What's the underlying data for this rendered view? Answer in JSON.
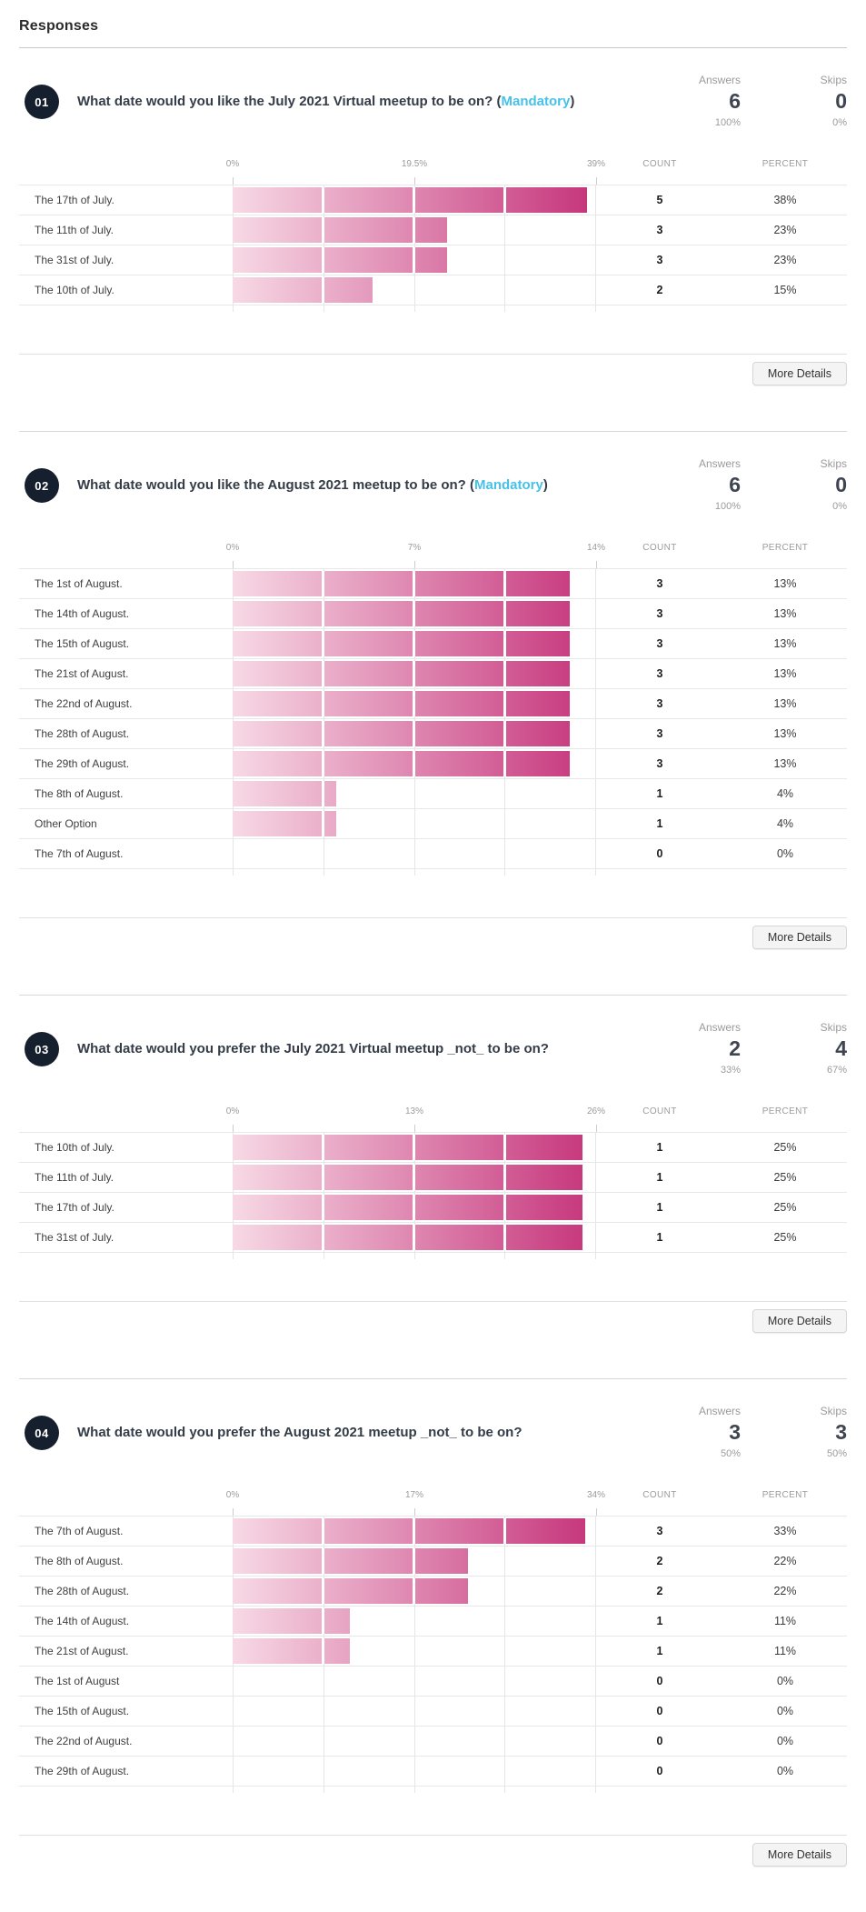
{
  "page": {
    "title": "Responses"
  },
  "stats_labels": {
    "answers": "Answers",
    "skips": "Skips"
  },
  "table_headers": {
    "count": "COUNT",
    "percent": "PERCENT"
  },
  "more_details_label": "More Details",
  "mandatory_tag": {
    "prefix": "(",
    "label": "Mandatory",
    "suffix": ")"
  },
  "colors": {
    "bar_gradient_start": "#F7D9E5",
    "bar_gradient_end": "#C5337A",
    "badge_background": "#161F2D",
    "mandatory_blue": "#47C1E8",
    "gridline": "#E5E5E5"
  },
  "questions": [
    {
      "number": "01",
      "title": "What date would you like the July 2021 Virtual meetup to be on?",
      "mandatory": true,
      "answers": {
        "count": "6",
        "percent": "100%"
      },
      "skips": {
        "count": "0",
        "percent": "0%"
      },
      "axis": {
        "ticks": [
          "0%",
          "19.5%",
          "39%"
        ],
        "max": 39
      },
      "rows": [
        {
          "label": "The 17th of July.",
          "count": "5",
          "percent": "38%",
          "pct": 38
        },
        {
          "label": "The 11th of July.",
          "count": "3",
          "percent": "23%",
          "pct": 23
        },
        {
          "label": "The 31st of July.",
          "count": "3",
          "percent": "23%",
          "pct": 23
        },
        {
          "label": "The 10th of July.",
          "count": "2",
          "percent": "15%",
          "pct": 15
        }
      ]
    },
    {
      "number": "02",
      "title": "What date would you like the August 2021 meetup to be on?",
      "mandatory": true,
      "answers": {
        "count": "6",
        "percent": "100%"
      },
      "skips": {
        "count": "0",
        "percent": "0%"
      },
      "axis": {
        "ticks": [
          "0%",
          "7%",
          "14%"
        ],
        "max": 14
      },
      "rows": [
        {
          "label": "The 1st of August.",
          "count": "3",
          "percent": "13%",
          "pct": 13
        },
        {
          "label": "The 14th of August.",
          "count": "3",
          "percent": "13%",
          "pct": 13
        },
        {
          "label": "The 15th of August.",
          "count": "3",
          "percent": "13%",
          "pct": 13
        },
        {
          "label": "The 21st of August.",
          "count": "3",
          "percent": "13%",
          "pct": 13
        },
        {
          "label": "The 22nd of August.",
          "count": "3",
          "percent": "13%",
          "pct": 13
        },
        {
          "label": "The 28th of August.",
          "count": "3",
          "percent": "13%",
          "pct": 13
        },
        {
          "label": "The 29th of August.",
          "count": "3",
          "percent": "13%",
          "pct": 13
        },
        {
          "label": "The 8th of August.",
          "count": "1",
          "percent": "4%",
          "pct": 4
        },
        {
          "label": "Other Option",
          "count": "1",
          "percent": "4%",
          "pct": 4
        },
        {
          "label": "The 7th of August.",
          "count": "0",
          "percent": "0%",
          "pct": 0
        }
      ]
    },
    {
      "number": "03",
      "title": "What date would you prefer the July 2021 Virtual meetup _not_ to be on?",
      "mandatory": false,
      "answers": {
        "count": "2",
        "percent": "33%"
      },
      "skips": {
        "count": "4",
        "percent": "67%"
      },
      "axis": {
        "ticks": [
          "0%",
          "13%",
          "26%"
        ],
        "max": 26
      },
      "rows": [
        {
          "label": "The 10th of July.",
          "count": "1",
          "percent": "25%",
          "pct": 25
        },
        {
          "label": "The 11th of July.",
          "count": "1",
          "percent": "25%",
          "pct": 25
        },
        {
          "label": "The 17th of July.",
          "count": "1",
          "percent": "25%",
          "pct": 25
        },
        {
          "label": "The 31st of July.",
          "count": "1",
          "percent": "25%",
          "pct": 25
        }
      ]
    },
    {
      "number": "04",
      "title": "What date would you prefer the August 2021 meetup _not_ to be on?",
      "mandatory": false,
      "answers": {
        "count": "3",
        "percent": "50%"
      },
      "skips": {
        "count": "3",
        "percent": "50%"
      },
      "axis": {
        "ticks": [
          "0%",
          "17%",
          "34%"
        ],
        "max": 34
      },
      "rows": [
        {
          "label": "The 7th of August.",
          "count": "3",
          "percent": "33%",
          "pct": 33
        },
        {
          "label": "The 8th of August.",
          "count": "2",
          "percent": "22%",
          "pct": 22
        },
        {
          "label": "The 28th of August.",
          "count": "2",
          "percent": "22%",
          "pct": 22
        },
        {
          "label": "The 14th of August.",
          "count": "1",
          "percent": "11%",
          "pct": 11
        },
        {
          "label": "The 21st of August.",
          "count": "1",
          "percent": "11%",
          "pct": 11
        },
        {
          "label": "The 1st of August",
          "count": "0",
          "percent": "0%",
          "pct": 0
        },
        {
          "label": "The 15th of August.",
          "count": "0",
          "percent": "0%",
          "pct": 0
        },
        {
          "label": "The 22nd of August.",
          "count": "0",
          "percent": "0%",
          "pct": 0
        },
        {
          "label": "The 29th of August.",
          "count": "0",
          "percent": "0%",
          "pct": 0
        }
      ]
    }
  ],
  "chart_data": [
    {
      "type": "bar",
      "orientation": "horizontal",
      "title": "What date would you like the July 2021 Virtual meetup to be on?",
      "categories": [
        "The 17th of July.",
        "The 11th of July.",
        "The 31st of July.",
        "The 10th of July."
      ],
      "values": [
        5,
        3,
        3,
        2
      ],
      "percents": [
        38,
        23,
        23,
        15
      ],
      "xlabel": "",
      "ylabel": "",
      "x_ticks": [
        "0%",
        "19.5%",
        "39%"
      ],
      "xlim": [
        0,
        39
      ],
      "grid": true
    },
    {
      "type": "bar",
      "orientation": "horizontal",
      "title": "What date would you like the August 2021 meetup to be on?",
      "categories": [
        "The 1st of August.",
        "The 14th of August.",
        "The 15th of August.",
        "The 21st of August.",
        "The 22nd of August.",
        "The 28th of August.",
        "The 29th of August.",
        "The 8th of August.",
        "Other Option",
        "The 7th of August."
      ],
      "values": [
        3,
        3,
        3,
        3,
        3,
        3,
        3,
        1,
        1,
        0
      ],
      "percents": [
        13,
        13,
        13,
        13,
        13,
        13,
        13,
        4,
        4,
        0
      ],
      "xlabel": "",
      "ylabel": "",
      "x_ticks": [
        "0%",
        "7%",
        "14%"
      ],
      "xlim": [
        0,
        14
      ],
      "grid": true
    },
    {
      "type": "bar",
      "orientation": "horizontal",
      "title": "What date would you prefer the July 2021 Virtual meetup _not_ to be on?",
      "categories": [
        "The 10th of July.",
        "The 11th of July.",
        "The 17th of July.",
        "The 31st of July."
      ],
      "values": [
        1,
        1,
        1,
        1
      ],
      "percents": [
        25,
        25,
        25,
        25
      ],
      "xlabel": "",
      "ylabel": "",
      "x_ticks": [
        "0%",
        "13%",
        "26%"
      ],
      "xlim": [
        0,
        26
      ],
      "grid": true
    },
    {
      "type": "bar",
      "orientation": "horizontal",
      "title": "What date would you prefer the August 2021 meetup _not_ to be on?",
      "categories": [
        "The 7th of August.",
        "The 8th of August.",
        "The 28th of August.",
        "The 14th of August.",
        "The 21st of August.",
        "The 1st of August",
        "The 15th of August.",
        "The 22nd of August.",
        "The 29th of August."
      ],
      "values": [
        3,
        2,
        2,
        1,
        1,
        0,
        0,
        0,
        0
      ],
      "percents": [
        33,
        22,
        22,
        11,
        11,
        0,
        0,
        0,
        0
      ],
      "xlabel": "",
      "ylabel": "",
      "x_ticks": [
        "0%",
        "17%",
        "34%"
      ],
      "xlim": [
        0,
        34
      ],
      "grid": true
    }
  ]
}
